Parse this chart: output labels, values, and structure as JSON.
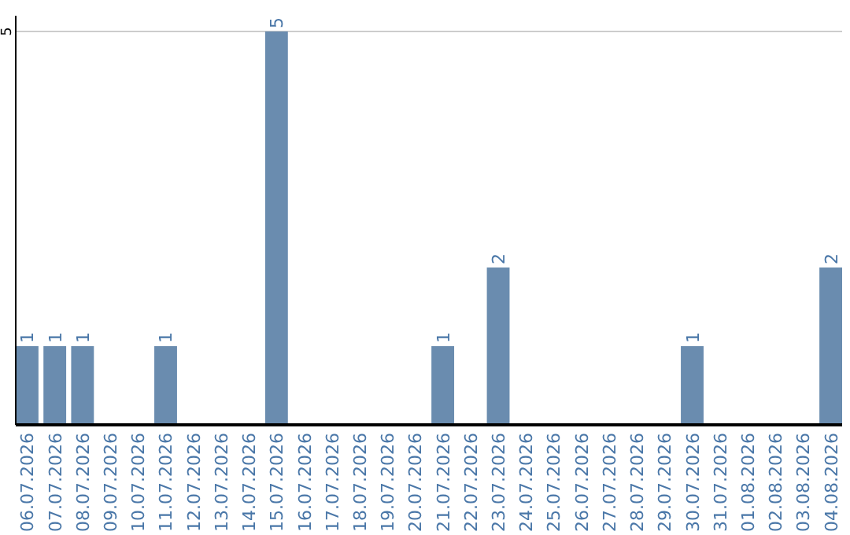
{
  "chart_data": {
    "type": "bar",
    "categories": [
      "06.07.2026",
      "07.07.2026",
      "08.07.2026",
      "09.07.2026",
      "10.07.2026",
      "11.07.2026",
      "12.07.2026",
      "13.07.2026",
      "14.07.2026",
      "15.07.2026",
      "16.07.2026",
      "17.07.2026",
      "18.07.2026",
      "19.07.2026",
      "20.07.2026",
      "21.07.2026",
      "22.07.2026",
      "23.07.2026",
      "24.07.2026",
      "25.07.2026",
      "26.07.2026",
      "27.07.2026",
      "28.07.2026",
      "29.07.2026",
      "30.07.2026",
      "31.07.2026",
      "01.08.2026",
      "02.08.2026",
      "03.08.2026",
      "04.08.2026"
    ],
    "values": [
      1,
      1,
      1,
      0,
      0,
      1,
      0,
      0,
      0,
      5,
      0,
      0,
      0,
      0,
      0,
      1,
      0,
      2,
      0,
      0,
      0,
      0,
      0,
      0,
      1,
      0,
      0,
      0,
      0,
      2
    ],
    "value_labels": [
      "1",
      "1",
      "1",
      null,
      null,
      "1",
      null,
      null,
      null,
      "5",
      null,
      null,
      null,
      null,
      null,
      "1",
      null,
      "2",
      null,
      null,
      null,
      null,
      null,
      null,
      "1",
      null,
      null,
      null,
      null,
      "2"
    ],
    "color": "#6a8caf",
    "ylim": [
      0,
      5.2
    ],
    "yticks": [
      5
    ],
    "grid": "y"
  }
}
